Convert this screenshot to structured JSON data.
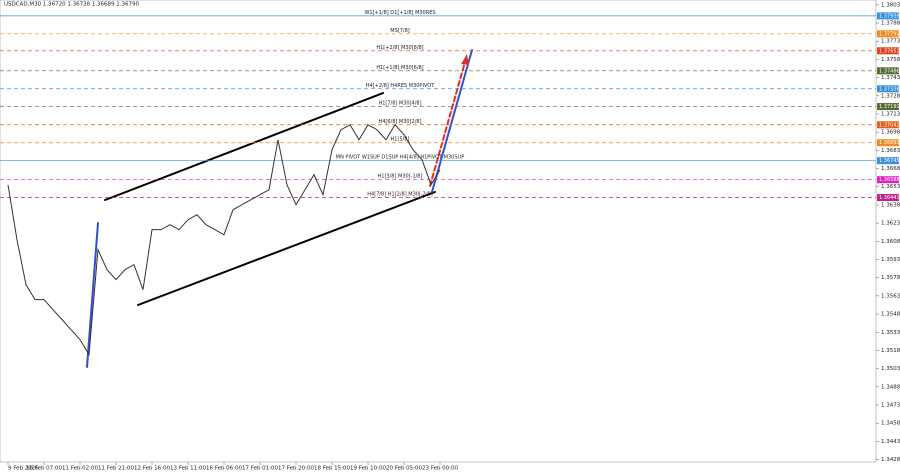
{
  "chart_data": {
    "type": "line",
    "title": "USDCAD,M30 1.36720 1.36738 1.36689 1.36790",
    "color": "#333333",
    "categories": [
      "9 Feb 2026",
      null,
      null,
      null,
      "10 Feb 07:00",
      null,
      null,
      null,
      "11 Feb 02:00",
      null,
      null,
      null,
      "11 Feb 21:00",
      null,
      null,
      null,
      "12 Feb 16:00",
      null,
      null,
      null,
      "13 Feb 11:00",
      null,
      null,
      null,
      "16 Feb 06:00",
      null,
      null,
      null,
      "17 Feb 01:00",
      null,
      null,
      null,
      "17 Feb 20:00",
      null,
      null,
      null,
      "18 Feb 15:00",
      null,
      null,
      null,
      "19 Feb 10:00",
      null,
      null,
      null,
      "20 Feb 05:00",
      null,
      null,
      null,
      "23 Feb 00:00"
    ],
    "values": [
      1.36546,
      1.36093,
      1.35722,
      1.35599,
      1.35599,
      1.35516,
      1.35434,
      1.35351,
      1.35269,
      1.35145,
      1.36011,
      1.35846,
      1.35764,
      1.35846,
      1.35887,
      1.35681,
      1.36176,
      1.36176,
      1.36217,
      1.36176,
      1.36258,
      1.36299,
      1.36217,
      1.36176,
      1.36134,
      1.3634,
      1.36382,
      1.36423,
      1.36464,
      1.36505,
      1.36917,
      1.36546,
      1.36382,
      1.36505,
      1.36629,
      1.36464,
      1.36835,
      1.37,
      1.37041,
      1.36917,
      1.37041,
      1.37,
      1.36917,
      1.37041,
      1.36959,
      1.36835,
      1.36753,
      1.36546,
      1.3667
    ],
    "ylim": [
      1.3426,
      1.3807
    ],
    "yticks": [
      {
        "value": 1.3803,
        "label": "1.38030"
      },
      {
        "value": 1.3788,
        "label": "1.37880"
      },
      {
        "value": 1.3773,
        "label": "1.37730"
      },
      {
        "value": 1.3758,
        "label": "1.37580"
      },
      {
        "value": 1.3743,
        "label": "1.37430"
      },
      {
        "value": 1.3728,
        "label": "1.37280"
      },
      {
        "value": 1.3713,
        "label": "1.37130"
      },
      {
        "value": 1.3698,
        "label": "1.36980"
      },
      {
        "value": 1.3683,
        "label": "1.36830"
      },
      {
        "value": 1.3668,
        "label": "1.36680"
      },
      {
        "value": 1.3653,
        "label": "1.36530"
      },
      {
        "value": 1.3638,
        "label": "1.36380"
      },
      {
        "value": 1.3623,
        "label": "1.36230"
      },
      {
        "value": 1.3608,
        "label": "1.36080"
      },
      {
        "value": 1.3593,
        "label": "1.35930"
      },
      {
        "value": 1.3578,
        "label": "1.35780"
      },
      {
        "value": 1.3563,
        "label": "1.35630"
      },
      {
        "value": 1.3548,
        "label": "1.35480"
      },
      {
        "value": 1.3533,
        "label": "1.35330"
      },
      {
        "value": 1.3518,
        "label": "1.35180"
      },
      {
        "value": 1.3503,
        "label": "1.35030"
      },
      {
        "value": 1.3488,
        "label": "1.34880"
      },
      {
        "value": 1.3473,
        "label": "1.34730"
      },
      {
        "value": 1.3458,
        "label": "1.34580"
      },
      {
        "value": 1.3443,
        "label": "1.34430"
      },
      {
        "value": 1.3428,
        "label": "1.34280"
      }
    ],
    "levels": [
      {
        "label": "W1[+1/8] D1[+1/8] M30RES",
        "price": 1.37939,
        "color": "#3a8fe0",
        "dashed": false
      },
      {
        "label": "MS[7/8]",
        "price": 1.37791,
        "color": "#f08a1c",
        "dashed": true
      },
      {
        "label": "H1[+2/8] M30[8/8]",
        "price": 1.37651,
        "color": "#e0401c",
        "dashed": true
      },
      {
        "label": "H1[+1/8] M30[6/8]",
        "price": 1.37486,
        "color": "#556b2f",
        "dashed": true
      },
      {
        "label": "H4[+2/8] H4RES M30PIVOT",
        "price": 1.37338,
        "color": "#3a8fe0",
        "dashed": true
      },
      {
        "label": "H1[7/8] M30[4/8]",
        "price": 1.37191,
        "color": "#556b2f",
        "dashed": true
      },
      {
        "label": "H4[6/8] M30[2/8]",
        "price": 1.37041,
        "color": "#e0601c",
        "dashed": true
      },
      {
        "label": "H1[5/8]",
        "price": 1.36893,
        "color": "#f08a1c",
        "dashed": true
      },
      {
        "label": "MN PIVOT W1SUP D1SUP H4[4/8] H1PIVOT M30SUP",
        "price": 1.36745,
        "color": "#3a8fe0",
        "dashed": false
      },
      {
        "label": "H1[3/8] M30[-1/8]",
        "price": 1.36588,
        "color": "#e020c0",
        "dashed": true
      },
      {
        "label": "H4[7/8] H1[2/8] M30[-2/8]",
        "price": 1.36441,
        "color": "#c0208a",
        "dashed": true
      }
    ]
  }
}
